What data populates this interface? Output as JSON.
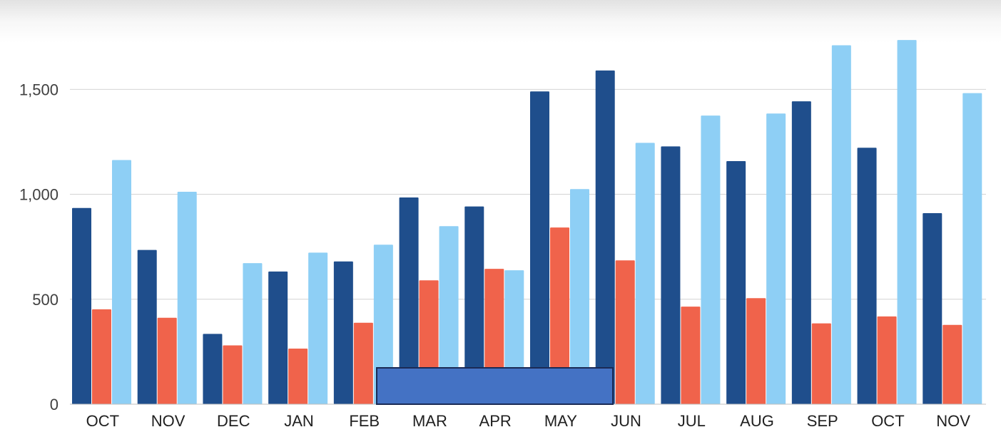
{
  "chart_data": {
    "type": "bar",
    "categories": [
      "OCT",
      "NOV",
      "DEC",
      "JAN",
      "FEB",
      "MAR",
      "APR",
      "MAY",
      "JUN",
      "JUL",
      "AUG",
      "SEP",
      "OCT",
      "NOV"
    ],
    "series": [
      {
        "values": [
          935,
          735,
          335,
          632,
          680,
          985,
          942,
          1490,
          1590,
          1228,
          1158,
          1443,
          1222,
          910
        ],
        "color": "#1f4e8c"
      },
      {
        "values": [
          452,
          412,
          280,
          265,
          388,
          590,
          645,
          842,
          685,
          465,
          505,
          385,
          418,
          378
        ],
        "color": "#f0634b"
      },
      {
        "values": [
          1163,
          1012,
          672,
          722,
          760,
          848,
          638,
          1025,
          1245,
          1375,
          1385,
          1710,
          1735,
          1482
        ],
        "color": "#8ecff5"
      }
    ],
    "y_ticks": [
      "0",
      "500",
      "1,000",
      "1,500"
    ],
    "ylim": [
      0,
      1800
    ],
    "grid": true,
    "legend": "none",
    "overlay_box_color": "#4472c4"
  }
}
